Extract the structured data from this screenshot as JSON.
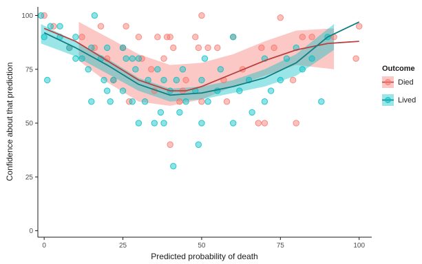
{
  "chart_data": {
    "type": "scatter",
    "xlabel": "Predicted probability of death",
    "ylabel": "Confidence about that prediction",
    "xlim": [
      -2,
      104
    ],
    "ylim": [
      -3,
      104
    ],
    "x_ticks": [
      0,
      25,
      50,
      75,
      100
    ],
    "y_ticks": [
      0,
      25,
      50,
      75,
      100
    ],
    "grid": false,
    "legend": {
      "title": "Outcome",
      "placement": "right"
    },
    "series": [
      {
        "name": "Died",
        "color": "#f8766d",
        "line_color": "#b8413f",
        "points": [
          [
            0,
            100
          ],
          [
            3,
            95
          ],
          [
            8,
            85
          ],
          [
            12,
            90
          ],
          [
            16,
            85
          ],
          [
            18,
            95
          ],
          [
            20,
            80
          ],
          [
            22,
            70
          ],
          [
            25,
            85
          ],
          [
            26,
            95
          ],
          [
            27,
            60
          ],
          [
            30,
            90
          ],
          [
            31,
            80
          ],
          [
            34,
            75
          ],
          [
            35,
            65
          ],
          [
            36,
            90
          ],
          [
            38,
            80
          ],
          [
            39,
            90
          ],
          [
            40,
            40
          ],
          [
            40,
            90
          ],
          [
            41,
            85
          ],
          [
            43,
            60
          ],
          [
            44,
            65
          ],
          [
            45,
            70
          ],
          [
            48,
            90
          ],
          [
            49,
            85
          ],
          [
            50,
            100
          ],
          [
            50,
            60
          ],
          [
            52,
            85
          ],
          [
            55,
            85
          ],
          [
            57,
            70
          ],
          [
            58,
            60
          ],
          [
            60,
            90
          ],
          [
            63,
            75
          ],
          [
            68,
            50
          ],
          [
            69,
            85
          ],
          [
            70,
            50
          ],
          [
            73,
            85
          ],
          [
            75,
            99
          ],
          [
            79,
            70
          ],
          [
            80,
            50
          ],
          [
            82,
            90
          ],
          [
            85,
            90
          ],
          [
            92,
            90
          ],
          [
            99,
            80
          ],
          [
            100,
            95
          ]
        ],
        "fit": [
          [
            0,
            94
          ],
          [
            10,
            88
          ],
          [
            20,
            79
          ],
          [
            30,
            70
          ],
          [
            40,
            65
          ],
          [
            45,
            65
          ],
          [
            50,
            67
          ],
          [
            60,
            73
          ],
          [
            70,
            79
          ],
          [
            80,
            84
          ],
          [
            90,
            87
          ],
          [
            100,
            88
          ]
        ],
        "band": [
          [
            11,
            97,
            79
          ],
          [
            20,
            90,
            69
          ],
          [
            30,
            82,
            60
          ],
          [
            40,
            77,
            58
          ],
          [
            50,
            78,
            61
          ],
          [
            60,
            82,
            67
          ],
          [
            70,
            88,
            72
          ],
          [
            80,
            93,
            77
          ],
          [
            92,
            94,
            75
          ]
        ]
      },
      {
        "name": "Lived",
        "color": "#00bfc4",
        "line_color": "#0e7e82",
        "points": [
          [
            -1,
            100
          ],
          [
            0,
            90
          ],
          [
            1,
            70
          ],
          [
            2,
            95
          ],
          [
            5,
            95
          ],
          [
            5,
            90
          ],
          [
            8,
            85
          ],
          [
            10,
            80
          ],
          [
            10,
            90
          ],
          [
            12,
            80
          ],
          [
            14,
            75
          ],
          [
            15,
            60
          ],
          [
            15,
            85
          ],
          [
            16,
            100
          ],
          [
            18,
            80
          ],
          [
            19,
            70
          ],
          [
            20,
            65
          ],
          [
            20,
            85
          ],
          [
            21,
            60
          ],
          [
            22,
            70
          ],
          [
            25,
            65
          ],
          [
            25,
            85
          ],
          [
            26,
            80
          ],
          [
            28,
            60
          ],
          [
            28,
            80
          ],
          [
            29,
            75
          ],
          [
            30,
            50
          ],
          [
            30,
            80
          ],
          [
            32,
            60
          ],
          [
            33,
            70
          ],
          [
            35,
            50
          ],
          [
            36,
            75
          ],
          [
            37,
            55
          ],
          [
            38,
            50
          ],
          [
            38,
            70
          ],
          [
            40,
            65
          ],
          [
            41,
            30
          ],
          [
            42,
            70
          ],
          [
            43,
            55
          ],
          [
            44,
            75
          ],
          [
            45,
            60
          ],
          [
            48,
            65
          ],
          [
            49,
            40
          ],
          [
            50,
            50
          ],
          [
            50,
            70
          ],
          [
            51,
            80
          ],
          [
            52,
            60
          ],
          [
            55,
            65
          ],
          [
            56,
            75
          ],
          [
            60,
            90
          ],
          [
            60,
            50
          ],
          [
            62,
            65
          ],
          [
            65,
            70
          ],
          [
            66,
            55
          ],
          [
            70,
            80
          ],
          [
            70,
            60
          ],
          [
            72,
            65
          ],
          [
            75,
            70
          ],
          [
            77,
            80
          ],
          [
            80,
            85
          ],
          [
            82,
            75
          ],
          [
            85,
            80
          ],
          [
            88,
            60
          ],
          [
            90,
            90
          ]
        ],
        "fit": [
          [
            0,
            92
          ],
          [
            10,
            85
          ],
          [
            20,
            77
          ],
          [
            30,
            68
          ],
          [
            40,
            63
          ],
          [
            50,
            64
          ],
          [
            60,
            67
          ],
          [
            70,
            71
          ],
          [
            80,
            78
          ],
          [
            90,
            90
          ],
          [
            100,
            97
          ]
        ],
        "band": [
          [
            -1,
            96,
            87
          ],
          [
            10,
            88,
            81
          ],
          [
            20,
            80,
            73
          ],
          [
            30,
            71,
            65
          ],
          [
            40,
            66,
            60
          ],
          [
            50,
            67,
            61
          ],
          [
            60,
            70,
            64
          ],
          [
            70,
            75,
            67
          ],
          [
            80,
            82,
            72
          ],
          [
            92,
            96,
            84
          ]
        ]
      }
    ]
  }
}
